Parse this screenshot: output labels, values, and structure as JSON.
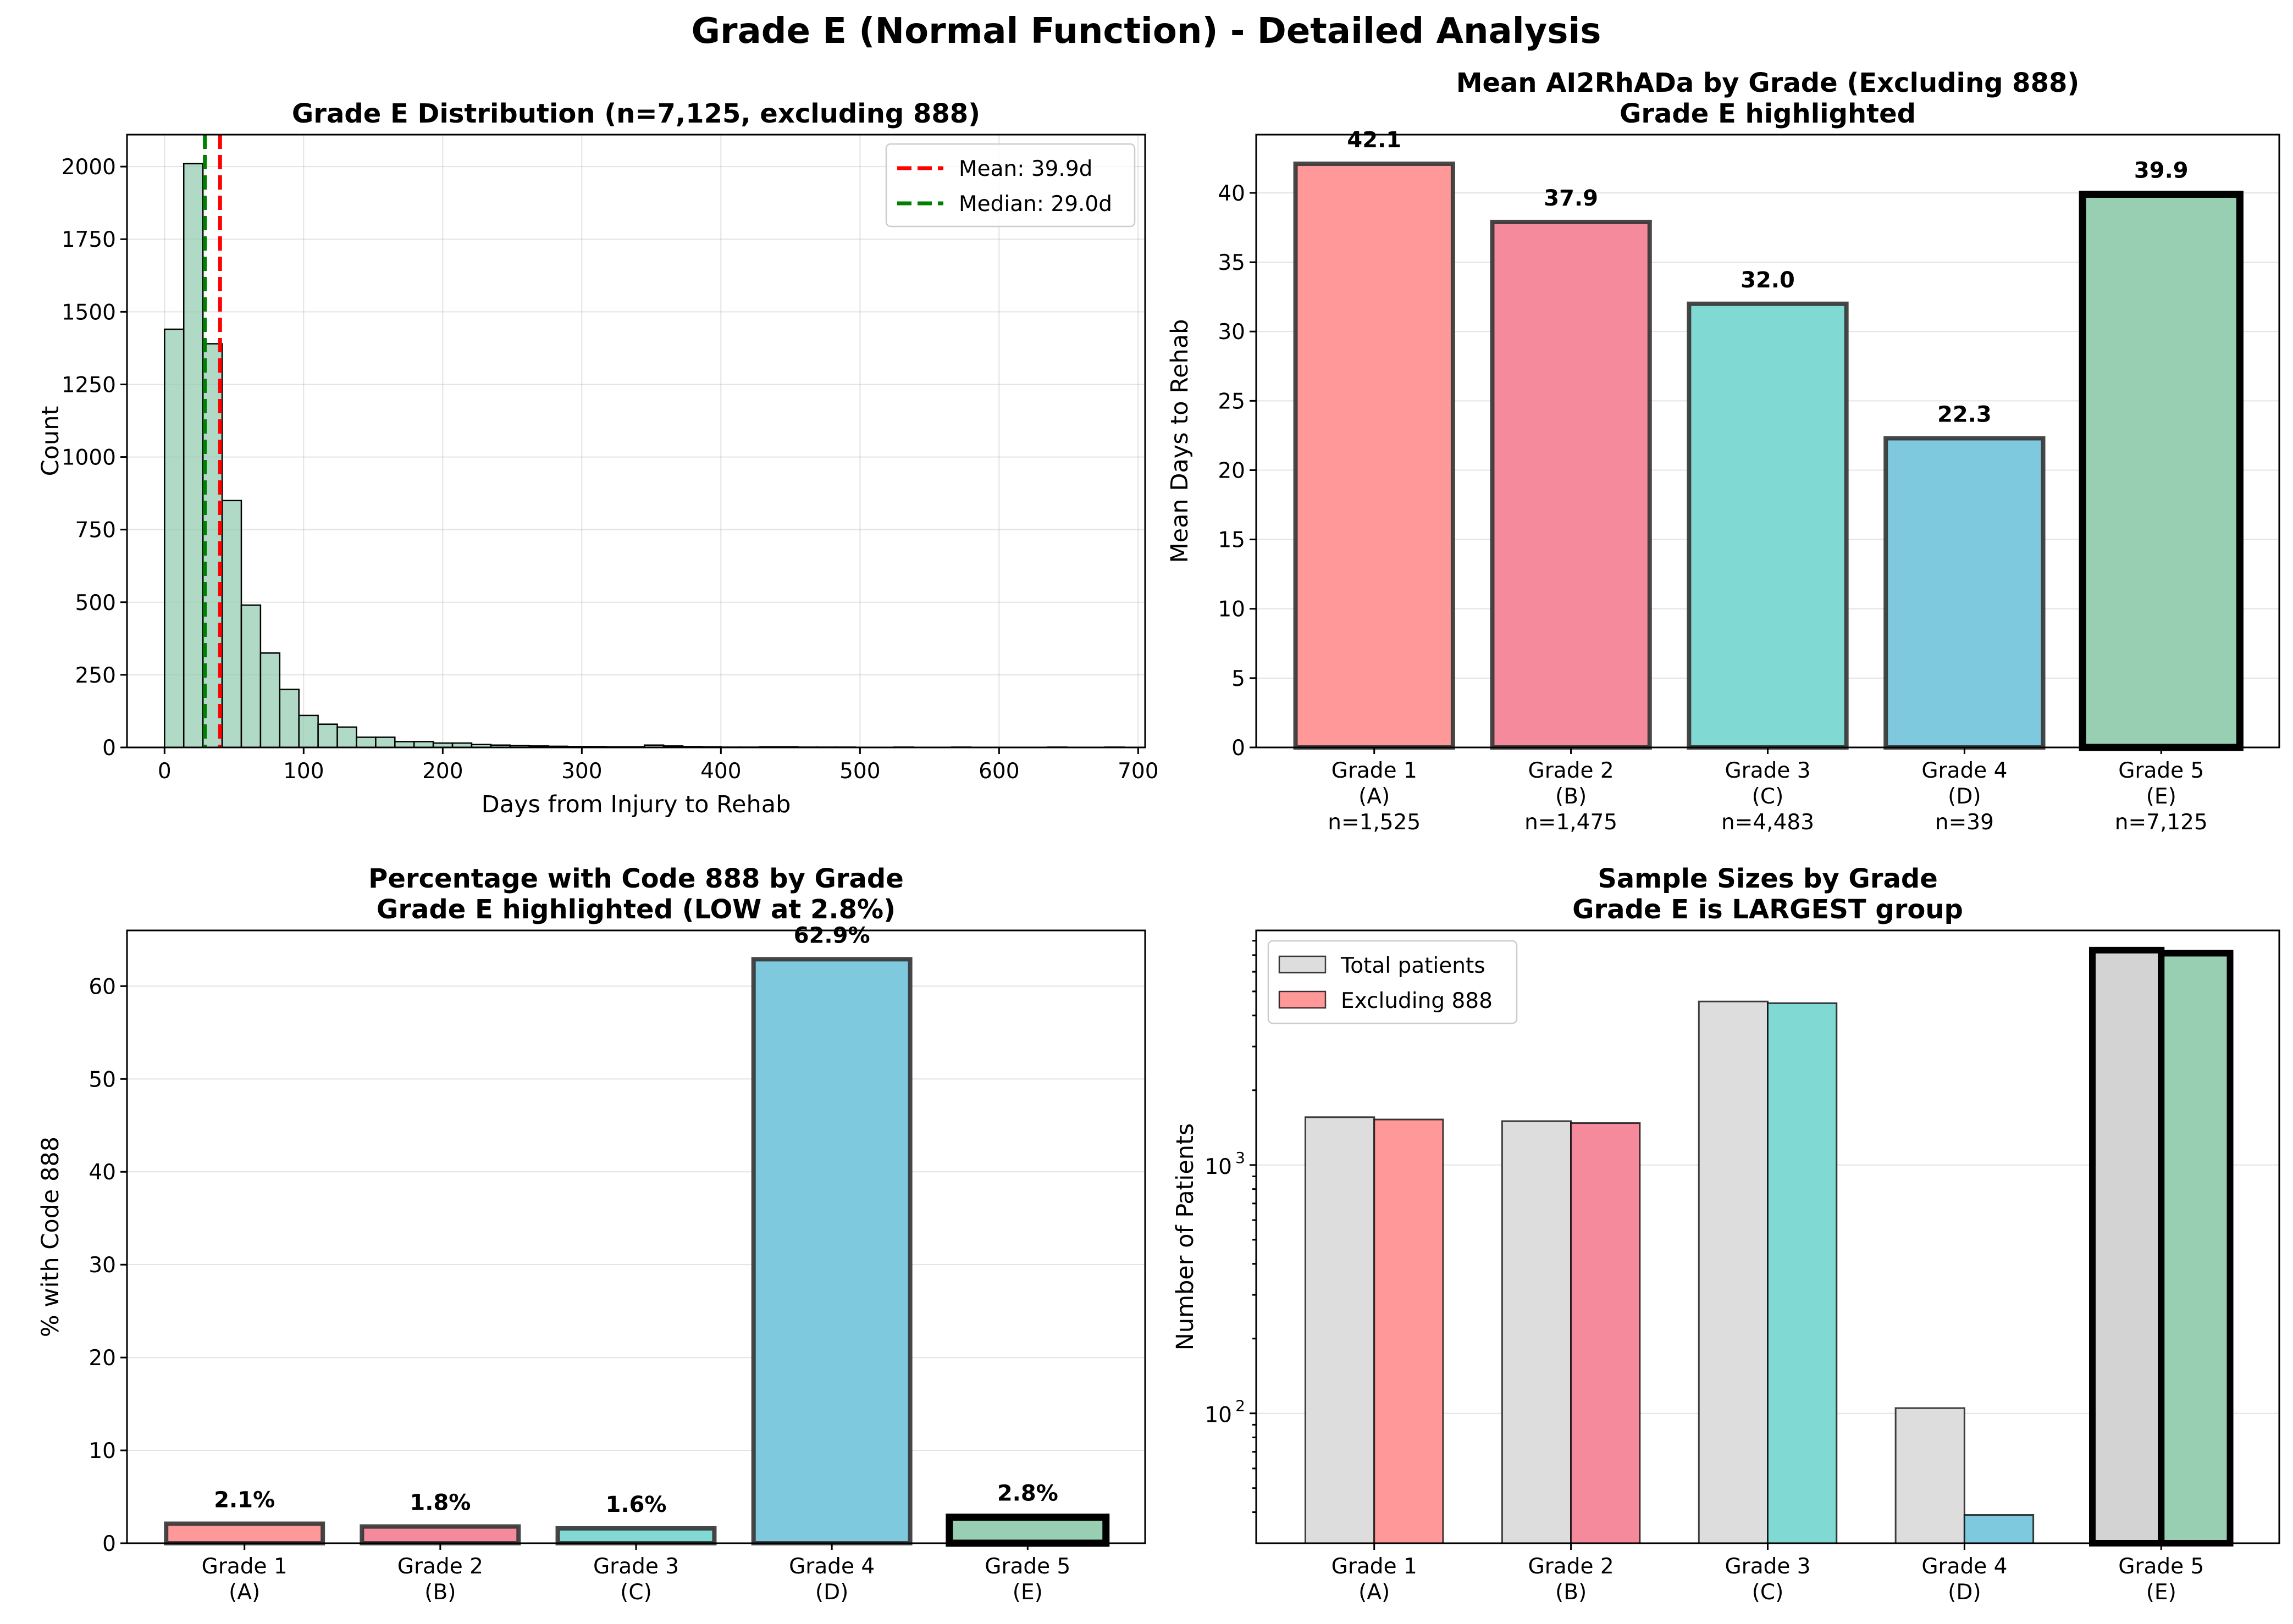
{
  "figure": {
    "title": "Grade E (Normal Function) - Detailed Analysis"
  },
  "chart_data": [
    {
      "id": "hist",
      "type": "bar",
      "subtype": "histogram",
      "title": "Grade E Distribution (n=7,125, excluding 888)",
      "xlabel": "Days from Injury to Rehab",
      "ylabel": "Count",
      "xlim": [
        -27,
        705
      ],
      "ylim": [
        0,
        2110
      ],
      "xticks": [
        0,
        100,
        200,
        300,
        400,
        500,
        600,
        700
      ],
      "yticks": [
        0,
        250,
        500,
        750,
        1000,
        1250,
        1500,
        1750,
        2000
      ],
      "bin_start": 0,
      "bin_width": 13.8,
      "counts": [
        1440,
        2010,
        1390,
        850,
        490,
        325,
        200,
        110,
        80,
        70,
        35,
        35,
        20,
        20,
        15,
        15,
        10,
        8,
        6,
        5,
        4,
        3,
        3,
        2,
        2,
        8,
        5,
        3,
        2,
        1,
        1,
        2,
        2,
        1,
        1,
        1,
        0,
        0,
        1,
        0,
        0,
        1,
        0,
        0,
        0,
        0,
        1,
        0,
        0,
        1
      ],
      "bar_color": "#8FCBAE",
      "vlines": [
        {
          "label": "Mean: 39.9d",
          "x": 39.9,
          "color": "#ff0000"
        },
        {
          "label": "Median: 29.0d",
          "x": 29.0,
          "color": "#008000"
        }
      ],
      "legend_position": "upper right",
      "grid": true
    },
    {
      "id": "mean",
      "type": "bar",
      "title": "Mean AI2RhADa by Grade (Excluding 888)\nGrade E highlighted",
      "xlabel": "",
      "ylabel": "Mean Days to Rehab",
      "ylim": [
        0,
        44.2
      ],
      "yticks": [
        0,
        5,
        10,
        15,
        20,
        25,
        30,
        35,
        40
      ],
      "categories": [
        "Grade 1\n(A)\nn=1,525",
        "Grade 2\n(B)\nn=1,475",
        "Grade 3\n(C)\nn=4,483",
        "Grade 4\n(D)\nn=39",
        "Grade 5\n(E)\nn=7,125"
      ],
      "values": [
        42.1,
        37.9,
        32.0,
        22.3,
        39.9
      ],
      "value_labels": [
        "42.1",
        "37.9",
        "32.0",
        "22.3",
        "39.9"
      ],
      "colors": [
        "#FF9999",
        "#F48A9B",
        "#80D9D3",
        "#7EC9DD",
        "#98CEB1"
      ],
      "highlight_index": 4,
      "grid": true
    },
    {
      "id": "pct",
      "type": "bar",
      "title": "Percentage with Code 888 by Grade\nGrade E highlighted (LOW at 2.8%)",
      "xlabel": "",
      "ylabel": "% with Code 888",
      "ylim": [
        0,
        66.0
      ],
      "yticks": [
        0,
        10,
        20,
        30,
        40,
        50,
        60
      ],
      "categories": [
        "Grade 1\n(A)",
        "Grade 2\n(B)",
        "Grade 3\n(C)",
        "Grade 4\n(D)",
        "Grade 5\n(E)"
      ],
      "values": [
        2.1,
        1.8,
        1.6,
        62.9,
        2.8
      ],
      "value_labels": [
        "2.1%",
        "1.8%",
        "1.6%",
        "62.9%",
        "2.8%"
      ],
      "colors": [
        "#FF9999",
        "#F48A9B",
        "#80D9D3",
        "#7EC9DD",
        "#98CEB1"
      ],
      "highlight_index": 4,
      "grid": true
    },
    {
      "id": "sizes",
      "type": "bar",
      "title": "Sample Sizes by Grade\nGrade E is LARGEST group",
      "xlabel": "",
      "ylabel": "Number of Patients",
      "yscale": "log",
      "ylim": [
        30,
        8800
      ],
      "yticks": [
        100,
        1000
      ],
      "ytick_labels": [
        [
          "10",
          "2"
        ],
        [
          "10",
          "3"
        ]
      ],
      "categories": [
        "Grade 1\n(A)",
        "Grade 2\n(B)",
        "Grade 3\n(C)",
        "Grade 4\n(D)",
        "Grade 5\n(E)"
      ],
      "series": [
        {
          "name": "Total patients",
          "values": [
            1558,
            1502,
            4555,
            105,
            7330
          ],
          "color": "#DDDDDD"
        },
        {
          "name": "Excluding 888",
          "values": [
            1525,
            1475,
            4483,
            39,
            7125
          ],
          "colors": [
            "#FF9999",
            "#F48A9B",
            "#80D9D3",
            "#7EC9DD",
            "#98CEB1"
          ]
        }
      ],
      "legend_position": "upper left",
      "highlight_index": 4,
      "grid": true
    }
  ]
}
